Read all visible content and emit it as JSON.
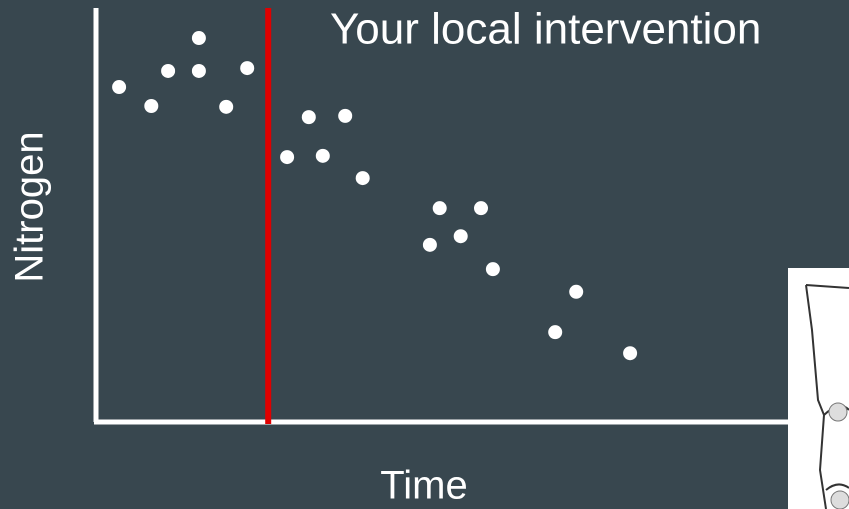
{
  "chart_data": {
    "type": "scatter",
    "annotation": "Your local intervention",
    "intervention_x": 24.6,
    "intervention_color": "#e00000",
    "x_label": "Time",
    "y_label": "Nitrogen",
    "color": "#ffffff",
    "xlim": [
      0,
      100
    ],
    "ylim": [
      0,
      100
    ],
    "x": [
      3.3,
      7.9,
      10.3,
      14.7,
      14.7,
      18.6,
      21.6,
      27.3,
      30.4,
      32.4,
      35.6,
      38.1,
      47.7,
      49.1,
      52.1,
      55.0,
      56.7,
      65.6,
      68.6,
      76.3
    ],
    "y": [
      81.3,
      76.7,
      85.2,
      93.2,
      85.2,
      76.5,
      85.9,
      64.3,
      74.0,
      64.6,
      74.3,
      59.2,
      43.0,
      51.9,
      45.1,
      51.9,
      37.1,
      21.8,
      31.6,
      16.7
    ]
  }
}
